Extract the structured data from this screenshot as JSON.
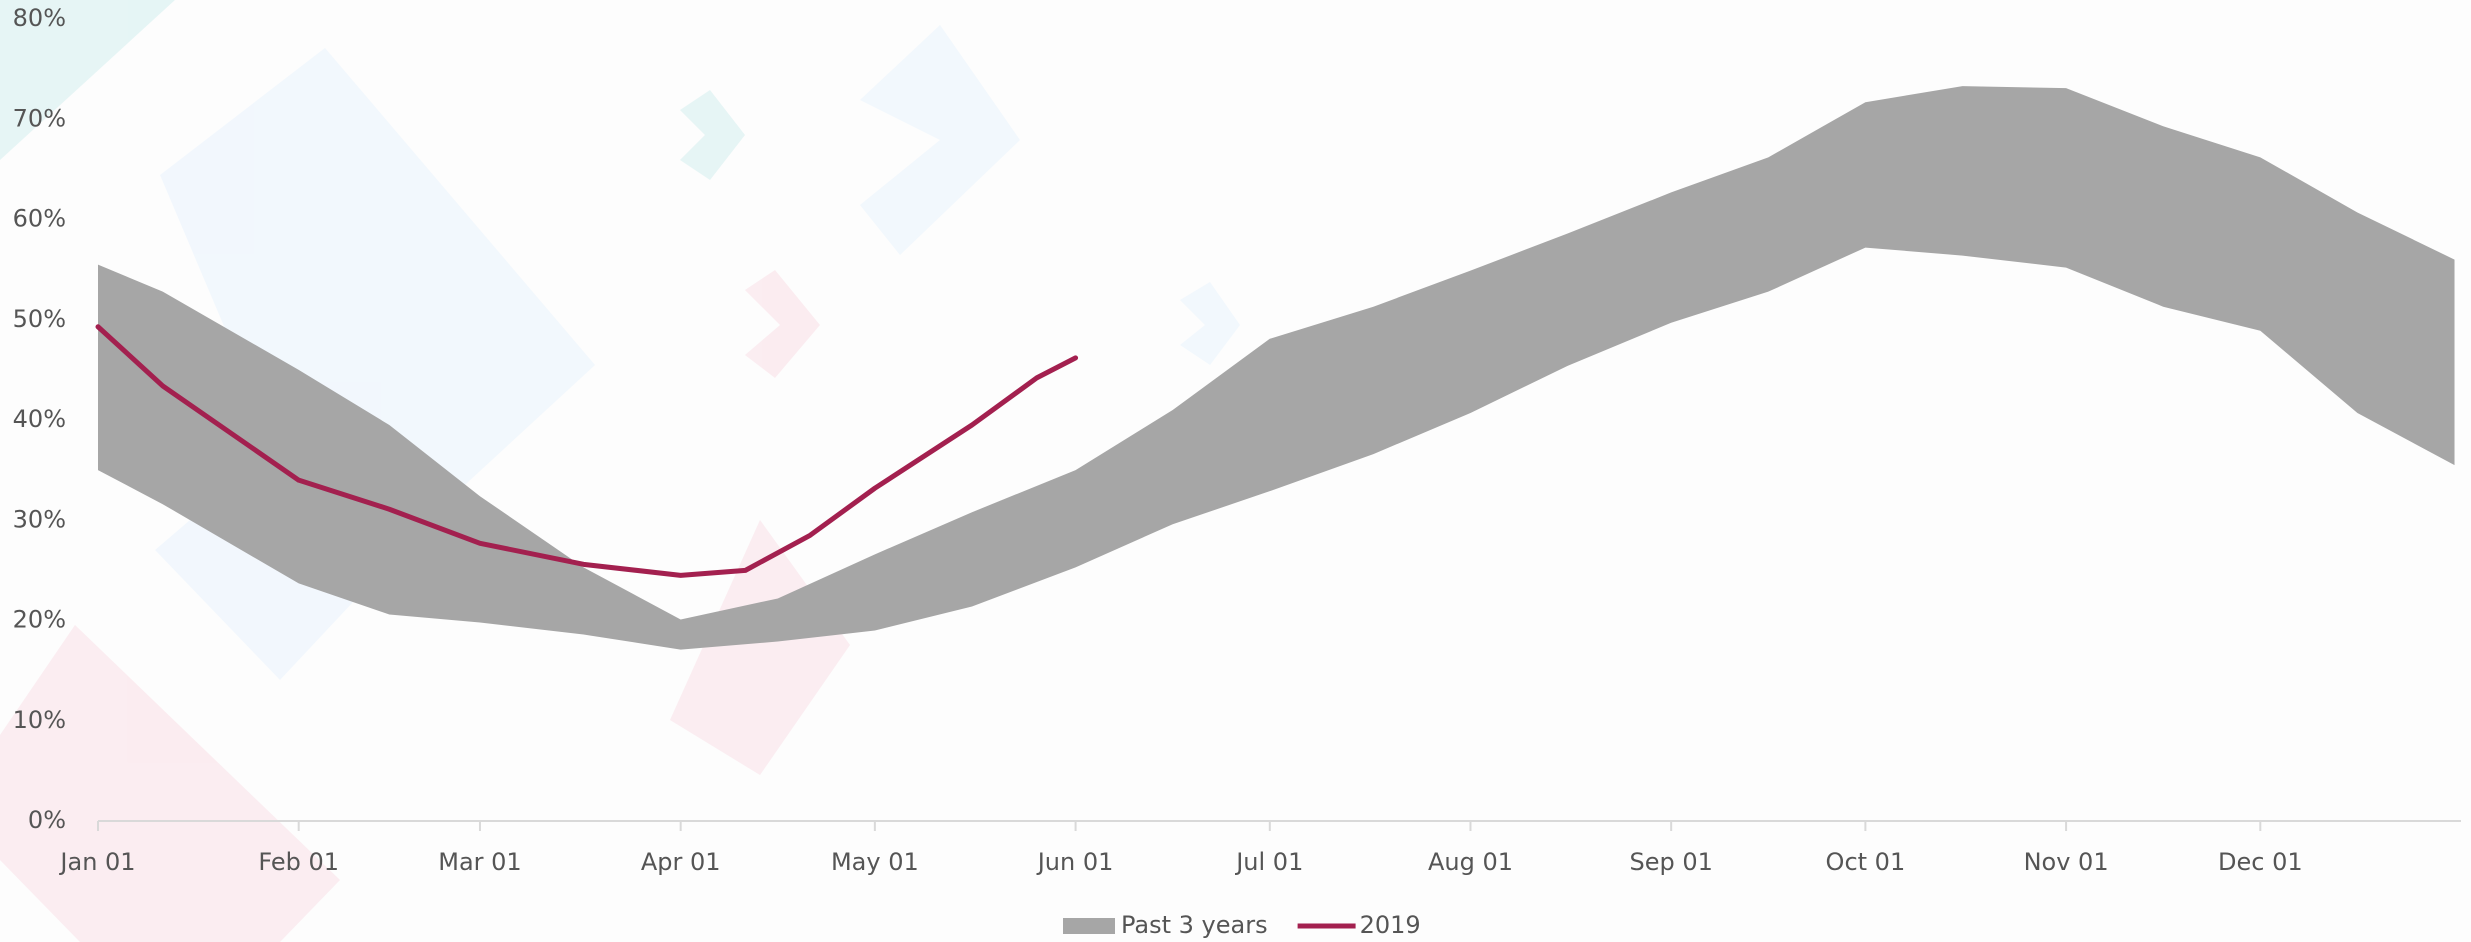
{
  "chart_data": {
    "type": "line",
    "xlim": [
      0,
      365
    ],
    "xticks": [
      {
        "value": 0,
        "label": "Jan 01"
      },
      {
        "value": 31,
        "label": "Feb 01"
      },
      {
        "value": 59,
        "label": "Mar 01"
      },
      {
        "value": 90,
        "label": "Apr 01"
      },
      {
        "value": 120,
        "label": "May 01"
      },
      {
        "value": 151,
        "label": "Jun 01"
      },
      {
        "value": 181,
        "label": "Jul 01"
      },
      {
        "value": 212,
        "label": "Aug 01"
      },
      {
        "value": 243,
        "label": "Sep 01"
      },
      {
        "value": 273,
        "label": "Oct 01"
      },
      {
        "value": 304,
        "label": "Nov 01"
      },
      {
        "value": 334,
        "label": "Dec 01"
      }
    ],
    "ylim": [
      0,
      80
    ],
    "yticks": [
      {
        "value": 0,
        "label": "0%"
      },
      {
        "value": 10,
        "label": "10%"
      },
      {
        "value": 20,
        "label": "20%"
      },
      {
        "value": 30,
        "label": "30%"
      },
      {
        "value": 40,
        "label": "40%"
      },
      {
        "value": 50,
        "label": "50%"
      },
      {
        "value": 60,
        "label": "60%"
      },
      {
        "value": 70,
        "label": "70%"
      },
      {
        "value": 80,
        "label": "80%"
      }
    ],
    "legend": "bottom",
    "series": [
      {
        "name": "Past 3 years",
        "kind": "band",
        "color": "#a6a6a6",
        "x": [
          0,
          10,
          31,
          45,
          59,
          75,
          90,
          105,
          120,
          135,
          151,
          166,
          181,
          197,
          212,
          227,
          243,
          258,
          273,
          288,
          304,
          319,
          334,
          349,
          364
        ],
        "upper": [
          55.5,
          52.8,
          45,
          39.5,
          32.4,
          25.3,
          20.1,
          22.2,
          26.6,
          30.8,
          35,
          41,
          48.1,
          51.3,
          54.9,
          58.6,
          62.7,
          66.2,
          71.7,
          73.3,
          73.1,
          69.3,
          66.2,
          60.7,
          56
        ],
        "lower": [
          35,
          31.6,
          23.7,
          20.6,
          19.8,
          18.6,
          17.1,
          17.9,
          19,
          21.4,
          25.3,
          29.6,
          32.9,
          36.6,
          40.7,
          45.4,
          49.7,
          52.8,
          57.2,
          56.4,
          55.2,
          51.3,
          48.9,
          40.7,
          35.5
        ]
      },
      {
        "name": "2019",
        "kind": "line",
        "color": "#a3204f",
        "x": [
          0,
          10,
          31,
          45,
          59,
          75,
          90,
          100,
          110,
          120,
          135,
          145,
          151
        ],
        "values": [
          49.3,
          43.4,
          34,
          31.1,
          27.7,
          25.6,
          24.5,
          25,
          28.5,
          33.2,
          39.5,
          44.2,
          46.2
        ]
      }
    ]
  }
}
